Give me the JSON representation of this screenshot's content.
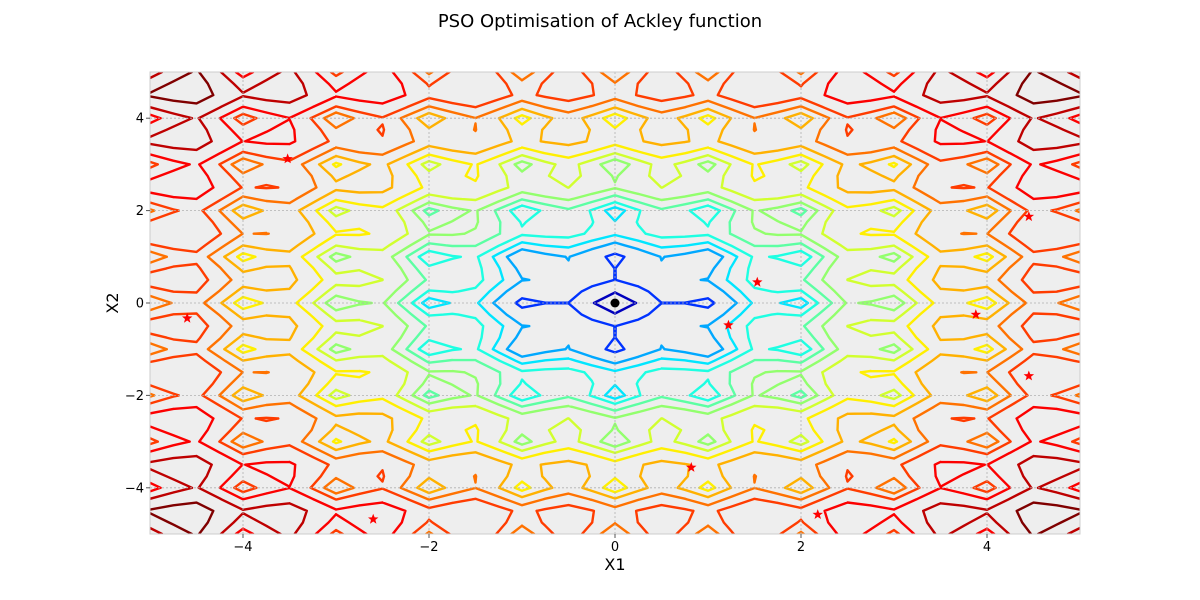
{
  "chart_data": {
    "type": "contour",
    "title": "PSO Optimisation of Ackley function",
    "xlabel": "X1",
    "ylabel": "X2",
    "xlim": [
      -5,
      5
    ],
    "ylim": [
      -5,
      5
    ],
    "xticks": [
      -4,
      -2,
      0,
      2,
      4
    ],
    "yticks": [
      -4,
      -2,
      0,
      2,
      4
    ],
    "xtick_labels": [
      "−4",
      "−2",
      "0",
      "2",
      "4"
    ],
    "ytick_labels": [
      "−4",
      "−2",
      "0",
      "2",
      "4"
    ],
    "grid": true,
    "background": "#eeeeee",
    "colormap": "jet",
    "contour_levels": [
      1.6,
      3.1,
      4.6,
      5.4,
      6.1,
      6.9,
      7.6,
      8.4,
      9.2,
      10.0,
      10.8,
      11.5,
      12.3,
      13.1,
      13.9
    ],
    "optimum": {
      "x": 0,
      "y": 0,
      "color": "#000000"
    },
    "particles": {
      "color": "#ff0000",
      "marker": "star",
      "points": [
        {
          "x": -3.52,
          "y": 3.12
        },
        {
          "x": -4.6,
          "y": -0.33
        },
        {
          "x": -2.6,
          "y": -4.68
        },
        {
          "x": 0.82,
          "y": -3.56
        },
        {
          "x": 1.22,
          "y": -0.48
        },
        {
          "x": 1.53,
          "y": 0.45
        },
        {
          "x": 2.18,
          "y": -4.58
        },
        {
          "x": 3.88,
          "y": -0.25
        },
        {
          "x": 4.45,
          "y": 1.87
        },
        {
          "x": 4.45,
          "y": -1.58
        }
      ]
    }
  }
}
